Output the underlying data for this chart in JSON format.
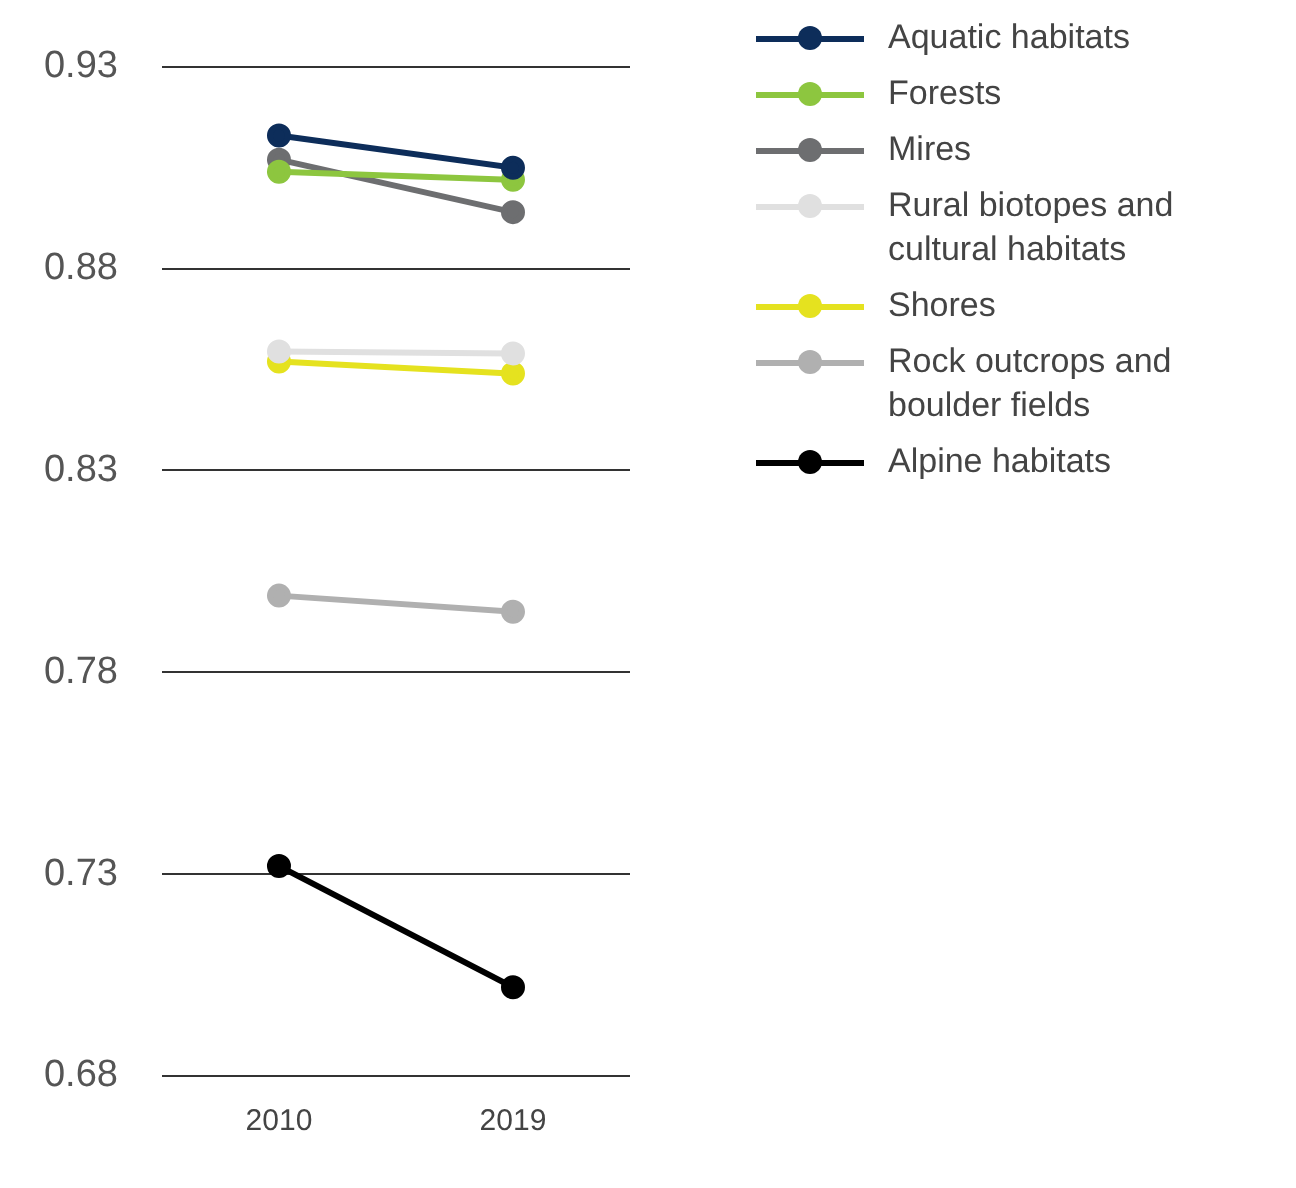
{
  "chart_data": {
    "type": "line",
    "categories": [
      "2010",
      "2019"
    ],
    "series": [
      {
        "name": "Aquatic habitats",
        "color": "#0d2d5a",
        "values": [
          0.913,
          0.905
        ]
      },
      {
        "name": "Forests",
        "color": "#8dc63f",
        "values": [
          0.904,
          0.902
        ]
      },
      {
        "name": "Mires",
        "color": "#6d6e70",
        "values": [
          0.907,
          0.894
        ]
      },
      {
        "name": "Rural biotopes and cultural habitats",
        "color": "#e0e0e0",
        "values": [
          0.8595,
          0.859
        ]
      },
      {
        "name": "Shores",
        "color": "#e5e21f",
        "values": [
          0.857,
          0.854
        ]
      },
      {
        "name": "Rock outcrops and boulder fields",
        "color": "#b0b0b0",
        "values": [
          0.799,
          0.795
        ]
      },
      {
        "name": "Alpine habitats",
        "color": "#000000",
        "values": [
          0.732,
          0.702
        ]
      }
    ],
    "ylim": [
      0.68,
      0.93
    ],
    "yticks": [
      0.68,
      0.73,
      0.78,
      0.83,
      0.88,
      0.93
    ],
    "grid": "y",
    "legend": "right",
    "marker": "circle",
    "line_style": "solid"
  }
}
